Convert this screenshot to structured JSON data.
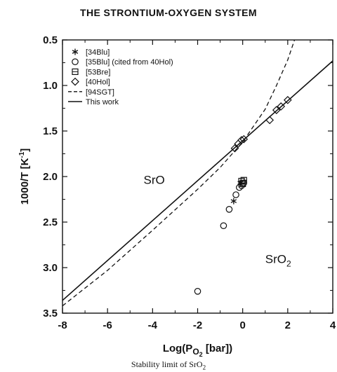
{
  "header": {
    "title": "THE STRONTIUM-OXYGEN SYSTEM"
  },
  "footer": {
    "caption": "Stability limit of SrO",
    "caption_sub": "2"
  },
  "chart_data": {
    "type": "scatter",
    "title": "THE STRONTIUM-OXYGEN SYSTEM",
    "xlabel_parts": [
      "Log(P",
      "O",
      "2",
      " [bar])"
    ],
    "ylabel_parts": [
      "1000/T [K",
      "-1",
      "]"
    ],
    "xlim": [
      -8,
      4
    ],
    "ylim": [
      0.5,
      3.5
    ],
    "y_inverted": true,
    "xticks": [
      -8,
      -6,
      -4,
      -2,
      0,
      2,
      4
    ],
    "yticks": [
      0.5,
      1.0,
      1.5,
      2.0,
      2.5,
      3.0,
      3.5
    ],
    "ytick_labels": [
      "0.5",
      "1.0",
      "1.5",
      "2.0",
      "2.5",
      "3.0",
      "3.5"
    ],
    "grid": false,
    "legend_position": "top-left",
    "region_labels": [
      {
        "text": "SrO",
        "sub": "",
        "x": -4.4,
        "y": 2.08
      },
      {
        "text": "SrO",
        "sub": "2",
        "x": 1.0,
        "y": 2.95
      }
    ],
    "series": [
      {
        "name": "[34Blu]",
        "marker": "asterisk",
        "points": [
          [
            -0.4,
            2.27
          ],
          [
            -0.1,
            2.07
          ]
        ]
      },
      {
        "name": "[35Blu] (cited from 40Hol)",
        "marker": "circle",
        "points": [
          [
            -2.0,
            3.26
          ],
          [
            -0.85,
            2.54
          ],
          [
            -0.6,
            2.36
          ],
          [
            -0.3,
            2.2
          ],
          [
            -0.15,
            2.12
          ],
          [
            -0.05,
            2.1
          ],
          [
            0.05,
            2.07
          ]
        ]
      },
      {
        "name": "[53Bre]",
        "marker": "square",
        "points": [
          [
            -0.05,
            2.05
          ],
          [
            0.0,
            2.08
          ],
          [
            0.05,
            2.04
          ]
        ]
      },
      {
        "name": "[40Hol]",
        "marker": "diamond",
        "points": [
          [
            -0.35,
            1.69
          ],
          [
            -0.2,
            1.64
          ],
          [
            -0.05,
            1.6
          ],
          [
            0.05,
            1.59
          ],
          [
            1.2,
            1.38
          ],
          [
            1.5,
            1.27
          ],
          [
            1.7,
            1.23
          ],
          [
            2.0,
            1.16
          ]
        ]
      },
      {
        "name": "[94SGT]",
        "marker": "dashed-line",
        "points": [
          [
            -8.0,
            3.42
          ],
          [
            -6.0,
            3.03
          ],
          [
            -4.0,
            2.59
          ],
          [
            -2.0,
            2.14
          ],
          [
            -1.0,
            1.9
          ],
          [
            0.0,
            1.62
          ],
          [
            1.0,
            1.26
          ],
          [
            1.5,
            1.0
          ],
          [
            2.0,
            0.72
          ],
          [
            2.3,
            0.5
          ]
        ]
      },
      {
        "name": "This work",
        "marker": "solid-line",
        "points": [
          [
            -8.0,
            3.36
          ],
          [
            4.0,
            0.73
          ]
        ]
      }
    ]
  }
}
